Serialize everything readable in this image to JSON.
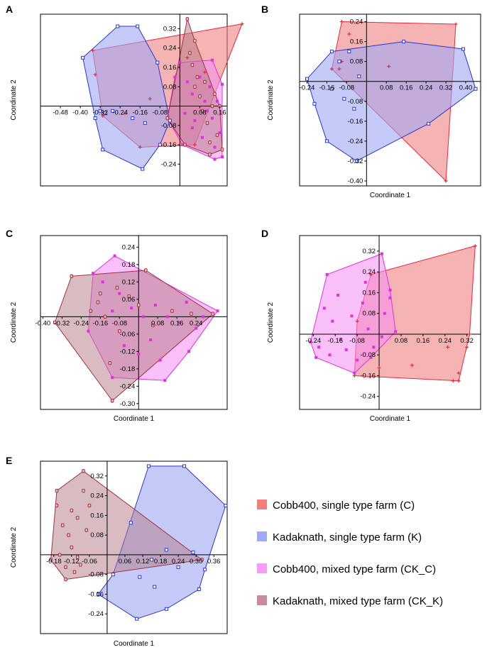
{
  "chart_data": [
    {
      "panel": "A",
      "type": "scatter",
      "subtype": "pcoa-convex-hull",
      "xlabel": "",
      "ylabel": "Coordinate 2",
      "xlim": [
        -0.56,
        0.19
      ],
      "ylim": [
        -0.33,
        0.38
      ],
      "x_ticks": [
        "-0.48",
        "-0.40",
        "-0.32",
        "-0.24",
        "-0.16",
        "-0.08",
        "0.08",
        "0.16"
      ],
      "y_ticks": [
        "0.32",
        "0.24",
        "0.16",
        "0.08",
        "-0.08",
        "-0.16",
        "-0.24"
      ],
      "groups": [
        {
          "key": "C",
          "hull": [
            [
              -0.35,
              0.23
            ],
            [
              0.25,
              0.34
            ],
            [
              0.06,
              -0.16
            ],
            [
              -0.16,
              -0.17
            ],
            [
              -0.31,
              -0.04
            ]
          ],
          "points": [
            [
              -0.34,
              0.13
            ],
            [
              -0.22,
              -0.03
            ],
            [
              -0.12,
              0.03
            ],
            [
              0.03,
              0.2
            ],
            [
              0.1,
              0.14
            ]
          ]
        },
        {
          "key": "K",
          "hull": [
            [
              -0.25,
              0.33
            ],
            [
              -0.17,
              0.33
            ],
            [
              -0.09,
              0.18
            ],
            [
              -0.04,
              -0.06
            ],
            [
              -0.08,
              -0.16
            ],
            [
              -0.15,
              -0.26
            ],
            [
              -0.31,
              -0.18
            ],
            [
              -0.34,
              -0.05
            ],
            [
              -0.39,
              0.2
            ]
          ],
          "points": [
            [
              -0.3,
              -0.03
            ],
            [
              -0.27,
              -0.02
            ],
            [
              -0.19,
              -0.05
            ],
            [
              -0.14,
              -0.07
            ],
            [
              -0.32,
              -0.02
            ]
          ]
        },
        {
          "key": "CK_C",
          "hull": [
            [
              0.0,
              0.18
            ],
            [
              0.13,
              0.19
            ],
            [
              0.17,
              0.09
            ],
            [
              0.17,
              -0.21
            ],
            [
              0.14,
              -0.22
            ],
            [
              0.01,
              -0.16
            ],
            [
              -0.05,
              -0.05
            ],
            [
              -0.02,
              0.12
            ]
          ],
          "points": [
            [
              0.03,
              0.1
            ],
            [
              0.05,
              0.05
            ],
            [
              0.08,
              0.12
            ],
            [
              0.11,
              -0.02
            ],
            [
              0.13,
              -0.05
            ],
            [
              0.05,
              -0.09
            ],
            [
              0.09,
              -0.13
            ],
            [
              0.14,
              -0.17
            ],
            [
              0.12,
              0.08
            ],
            [
              0.02,
              -0.03
            ],
            [
              0.15,
              0.02
            ],
            [
              0.06,
              -0.06
            ],
            [
              0.1,
              0.02
            ],
            [
              0.16,
              -0.11
            ]
          ]
        },
        {
          "key": "CK_K",
          "hull": [
            [
              0.03,
              0.36
            ],
            [
              0.06,
              0.27
            ],
            [
              0.16,
              0.0
            ],
            [
              0.17,
              -0.18
            ],
            [
              0.12,
              -0.2
            ],
            [
              0.02,
              -0.16
            ],
            [
              -0.05,
              -0.05
            ]
          ],
          "points": [
            [
              0.04,
              0.22
            ],
            [
              0.05,
              0.17
            ],
            [
              0.06,
              0.08
            ],
            [
              0.08,
              0.04
            ],
            [
              0.09,
              -0.02
            ],
            [
              0.1,
              0.1
            ],
            [
              0.11,
              -0.07
            ],
            [
              0.13,
              0.0
            ],
            [
              0.14,
              0.05
            ],
            [
              0.15,
              -0.12
            ],
            [
              0.07,
              0.12
            ],
            [
              0.12,
              -0.15
            ]
          ]
        }
      ]
    },
    {
      "panel": "B",
      "type": "scatter",
      "subtype": "pcoa-convex-hull",
      "xlabel": "Coordinate 1",
      "ylabel": "Coordinate 2",
      "xlim": [
        -0.27,
        0.46
      ],
      "ylim": [
        -0.42,
        0.27
      ],
      "x_ticks": [
        "-0.24",
        "-0.16",
        "-0.08",
        "0.08",
        "0.16",
        "0.24",
        "0.32",
        "0.40"
      ],
      "y_ticks": [
        "0.24",
        "0.16",
        "0.08",
        "-0.08",
        "-0.16",
        "-0.24",
        "-0.32",
        "-0.40"
      ],
      "groups": [
        {
          "key": "C",
          "hull": [
            [
              -0.1,
              0.24
            ],
            [
              0.36,
              0.23
            ],
            [
              0.32,
              -0.4
            ],
            [
              -0.14,
              0.05
            ]
          ],
          "points": [
            [
              -0.07,
              0.19
            ],
            [
              0.09,
              0.06
            ],
            [
              -0.1,
              0.08
            ],
            [
              -0.11,
              0.05
            ]
          ]
        },
        {
          "key": "K",
          "hull": [
            [
              -0.24,
              0.01
            ],
            [
              -0.14,
              0.12
            ],
            [
              0.15,
              0.16
            ],
            [
              0.39,
              0.13
            ],
            [
              0.44,
              -0.03
            ],
            [
              0.25,
              -0.17
            ],
            [
              -0.04,
              -0.32
            ],
            [
              -0.16,
              -0.24
            ],
            [
              -0.21,
              -0.09
            ]
          ],
          "points": [
            [
              -0.14,
              -0.03
            ],
            [
              -0.09,
              -0.07
            ],
            [
              -0.05,
              -0.11
            ],
            [
              -0.07,
              0.12
            ],
            [
              -0.11,
              0.08
            ],
            [
              -0.03,
              0.02
            ]
          ]
        },
        {
          "key": "CK_C",
          "hull": [],
          "points": []
        },
        {
          "key": "CK_K",
          "hull": [],
          "points": []
        }
      ]
    },
    {
      "panel": "C",
      "type": "scatter",
      "subtype": "pcoa-convex-hull",
      "xlabel": "Coordinate 1",
      "ylabel": "Coordinate 2",
      "xlim": [
        -0.41,
        0.37
      ],
      "ylim": [
        -0.32,
        0.28
      ],
      "x_ticks": [
        "-0.40",
        "-0.32",
        "-0.24",
        "-0.16",
        "-0.08",
        "0.08",
        "0.16",
        "0.24"
      ],
      "y_ticks": [
        "0.24",
        "0.18",
        "0.12",
        "0.06",
        "-0.06",
        "-0.12",
        "-0.18",
        "-0.24",
        "-0.30"
      ],
      "groups": [
        {
          "key": "C",
          "hull": [],
          "points": []
        },
        {
          "key": "K",
          "hull": [],
          "points": []
        },
        {
          "key": "CK_C",
          "hull": [
            [
              -0.19,
              0.15
            ],
            [
              -0.1,
              0.21
            ],
            [
              0.33,
              0.02
            ],
            [
              0.21,
              -0.12
            ],
            [
              0.11,
              -0.22
            ],
            [
              -0.11,
              -0.21
            ],
            [
              -0.21,
              -0.05
            ]
          ],
          "points": [
            [
              -0.15,
              0.12
            ],
            [
              -0.08,
              0.08
            ],
            [
              -0.03,
              0.03
            ],
            [
              0.02,
              0.0
            ],
            [
              0.07,
              0.04
            ],
            [
              0.12,
              0.0
            ],
            [
              0.17,
              -0.02
            ],
            [
              0.27,
              0.0
            ],
            [
              0.2,
              0.05
            ],
            [
              0.05,
              -0.08
            ],
            [
              -0.06,
              -0.1
            ],
            [
              0.0,
              -0.13
            ],
            [
              0.09,
              -0.15
            ],
            [
              0.24,
              -0.04
            ],
            [
              -0.11,
              0.02
            ]
          ]
        },
        {
          "key": "CK_K",
          "hull": [
            [
              -0.28,
              0.14
            ],
            [
              0.03,
              0.16
            ],
            [
              0.31,
              0.01
            ],
            [
              -0.11,
              -0.29
            ],
            [
              -0.35,
              -0.02
            ]
          ],
          "points": [
            [
              -0.2,
              0.02
            ],
            [
              -0.16,
              0.08
            ],
            [
              -0.14,
              0.0
            ],
            [
              -0.08,
              -0.05
            ],
            [
              -0.04,
              0.07
            ],
            [
              -0.09,
              0.1
            ],
            [
              0.0,
              0.04
            ],
            [
              0.06,
              -0.03
            ],
            [
              0.14,
              0.02
            ],
            [
              0.22,
              0.01
            ],
            [
              -0.12,
              -0.16
            ],
            [
              -0.17,
              0.05
            ]
          ]
        }
      ]
    },
    {
      "panel": "D",
      "type": "scatter",
      "subtype": "pcoa-convex-hull",
      "xlabel": "Coordinate 1",
      "ylabel": "Coordinate 2",
      "xlim": [
        -0.29,
        0.37
      ],
      "ylim": [
        -0.29,
        0.38
      ],
      "x_ticks": [
        "-0.24",
        "-0.16",
        "-0.08",
        "0.08",
        "0.16",
        "0.24",
        "0.32"
      ],
      "y_ticks": [
        "0.32",
        "0.24",
        "0.16",
        "0.08",
        "-0.08",
        "-0.16",
        "-0.24"
      ],
      "groups": [
        {
          "key": "C",
          "hull": [
            [
              -0.03,
              0.23
            ],
            [
              0.35,
              0.34
            ],
            [
              0.33,
              0.0
            ],
            [
              0.29,
              -0.18
            ],
            [
              -0.09,
              -0.16
            ],
            [
              -0.08,
              0.05
            ]
          ],
          "points": [
            [
              0.25,
              -0.05
            ],
            [
              0.29,
              -0.15
            ],
            [
              0.27,
              -0.18
            ],
            [
              0.0,
              -0.13
            ],
            [
              0.12,
              -0.12
            ],
            [
              0.32,
              -0.05
            ]
          ]
        },
        {
          "key": "K",
          "hull": [],
          "points": []
        },
        {
          "key": "CK_C",
          "hull": [
            [
              -0.19,
              0.23
            ],
            [
              0.01,
              0.31
            ],
            [
              0.04,
              0.17
            ],
            [
              0.06,
              0.01
            ],
            [
              -0.03,
              -0.09
            ],
            [
              -0.09,
              -0.15
            ],
            [
              -0.23,
              -0.09
            ],
            [
              -0.25,
              -0.03
            ]
          ],
          "points": [
            [
              -0.2,
              0.1
            ],
            [
              -0.17,
              0.05
            ],
            [
              -0.14,
              -0.02
            ],
            [
              -0.1,
              0.07
            ],
            [
              -0.06,
              0.12
            ],
            [
              -0.04,
              0.02
            ],
            [
              -0.02,
              -0.05
            ],
            [
              0.02,
              0.08
            ],
            [
              0.04,
              0.14
            ],
            [
              -0.12,
              -0.06
            ],
            [
              -0.18,
              -0.08
            ],
            [
              -0.08,
              -0.1
            ],
            [
              -0.15,
              0.15
            ],
            [
              0.01,
              -0.01
            ],
            [
              -0.22,
              -0.05
            ],
            [
              -0.05,
              0.2
            ]
          ]
        },
        {
          "key": "CK_K",
          "hull": [],
          "points": []
        }
      ]
    },
    {
      "panel": "E",
      "type": "scatter",
      "subtype": "pcoa-convex-hull",
      "xlabel": "Coordinate 1",
      "ylabel": "Coordinate 2",
      "xlim": [
        -0.225,
        0.405
      ],
      "ylim": [
        -0.32,
        0.38
      ],
      "x_ticks": [
        "-0.18",
        "-0.12",
        "-0.06",
        "0.06",
        "0.12",
        "0.18",
        "0.24",
        "0.30",
        "0.36"
      ],
      "y_ticks": [
        "0.32",
        "0.24",
        "0.16",
        "0.08",
        "-0.08",
        "-0.16",
        "-0.24"
      ],
      "groups": [
        {
          "key": "C",
          "hull": [],
          "points": []
        },
        {
          "key": "K",
          "hull": [
            [
              0.14,
              0.36
            ],
            [
              0.26,
              0.36
            ],
            [
              0.4,
              0.2
            ],
            [
              0.33,
              -0.06
            ],
            [
              0.31,
              -0.14
            ],
            [
              0.2,
              -0.22
            ],
            [
              0.1,
              -0.26
            ],
            [
              -0.03,
              -0.16
            ],
            [
              0.02,
              -0.08
            ]
          ],
          "points": [
            [
              0.08,
              0.13
            ],
            [
              0.15,
              -0.02
            ],
            [
              0.2,
              0.02
            ],
            [
              0.24,
              -0.05
            ],
            [
              0.16,
              -0.13
            ],
            [
              0.11,
              -0.09
            ],
            [
              0.29,
              0.01
            ]
          ]
        },
        {
          "key": "CK_C",
          "hull": [],
          "points": []
        },
        {
          "key": "CK_K",
          "hull": [
            [
              -0.17,
              0.26
            ],
            [
              -0.08,
              0.34
            ],
            [
              0.32,
              -0.02
            ],
            [
              -0.14,
              -0.1
            ],
            [
              -0.19,
              -0.02
            ]
          ],
          "points": [
            [
              -0.17,
              0.2
            ],
            [
              -0.15,
              0.12
            ],
            [
              -0.13,
              0.08
            ],
            [
              -0.12,
              0.03
            ],
            [
              -0.1,
              -0.01
            ],
            [
              -0.09,
              -0.04
            ],
            [
              -0.11,
              -0.07
            ],
            [
              -0.14,
              -0.05
            ],
            [
              -0.16,
              0.0
            ],
            [
              -0.08,
              0.26
            ],
            [
              -0.06,
              0.2
            ],
            [
              -0.1,
              0.15
            ],
            [
              -0.12,
              0.18
            ],
            [
              -0.07,
              0.1
            ]
          ]
        }
      ]
    }
  ],
  "legend": {
    "items": [
      {
        "key": "C",
        "label": "Cobb400, single type farm (C)",
        "color": "#f08080"
      },
      {
        "key": "K",
        "label": "Kadaknath, single type farm (K)",
        "color": "#9fa9f5"
      },
      {
        "key": "CK_C",
        "label": "Cobb400, mixed type farm (CK_C)",
        "color": "#f39df3"
      },
      {
        "key": "CK_K",
        "label": "Kadaknath, mixed type farm (CK_K)",
        "color": "#c98a9a"
      }
    ]
  },
  "group_styles": {
    "C": {
      "fill": "#f08080",
      "fill_opacity": 0.6,
      "stroke": "#e8283c",
      "marker": "plus"
    },
    "K": {
      "fill": "#9ea6f5",
      "fill_opacity": 0.6,
      "stroke": "#2838d0",
      "marker": "square"
    },
    "CK_C": {
      "fill": "#f68cf6",
      "fill_opacity": 0.55,
      "stroke": "#e030e0",
      "marker": "filled-square"
    },
    "CK_K": {
      "fill": "#b27a84",
      "fill_opacity": 0.5,
      "stroke": "#a03040",
      "marker": "ring"
    }
  }
}
